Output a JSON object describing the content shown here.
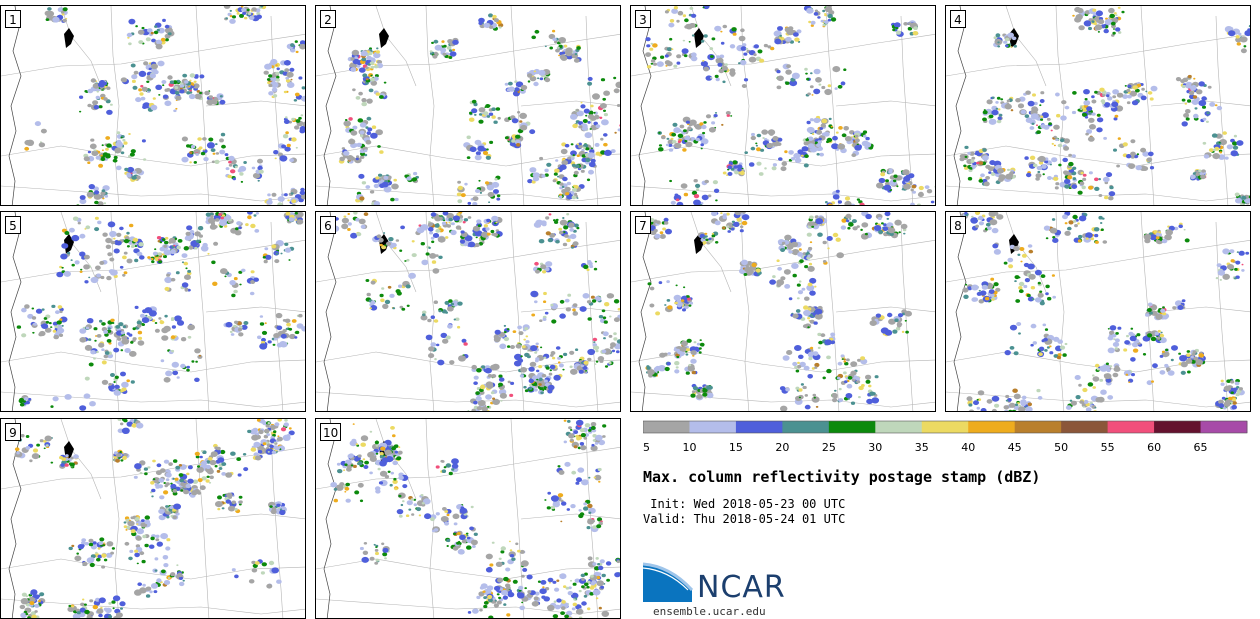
{
  "panels": [
    {
      "label": "1"
    },
    {
      "label": "2"
    },
    {
      "label": "3"
    },
    {
      "label": "4"
    },
    {
      "label": "5"
    },
    {
      "label": "6"
    },
    {
      "label": "7"
    },
    {
      "label": "8"
    },
    {
      "label": "9"
    },
    {
      "label": "10"
    }
  ],
  "colorbar": {
    "colors": [
      "#a5a5a5",
      "#b4bdea",
      "#4f5fdb",
      "#4b9191",
      "#0c8a0c",
      "#bfd7bb",
      "#ecda62",
      "#eeac1e",
      "#b97f2c",
      "#8b5639",
      "#f14f7b",
      "#64122e",
      "#a74ba8"
    ],
    "ticks": [
      "5",
      "10",
      "15",
      "20",
      "25",
      "30",
      "35",
      "40",
      "45",
      "50",
      "55",
      "60",
      "65"
    ]
  },
  "title": "Max. column reflectivity postage stamp (dBZ)",
  "init": " Init: Wed 2018-05-23 00 UTC",
  "valid": "Valid: Thu 2018-05-24 01 UTC",
  "logo": {
    "text": "NCAR",
    "url": "ensemble.ucar.edu",
    "blue": "#0a74bf",
    "navy": "#1c3f6e"
  }
}
